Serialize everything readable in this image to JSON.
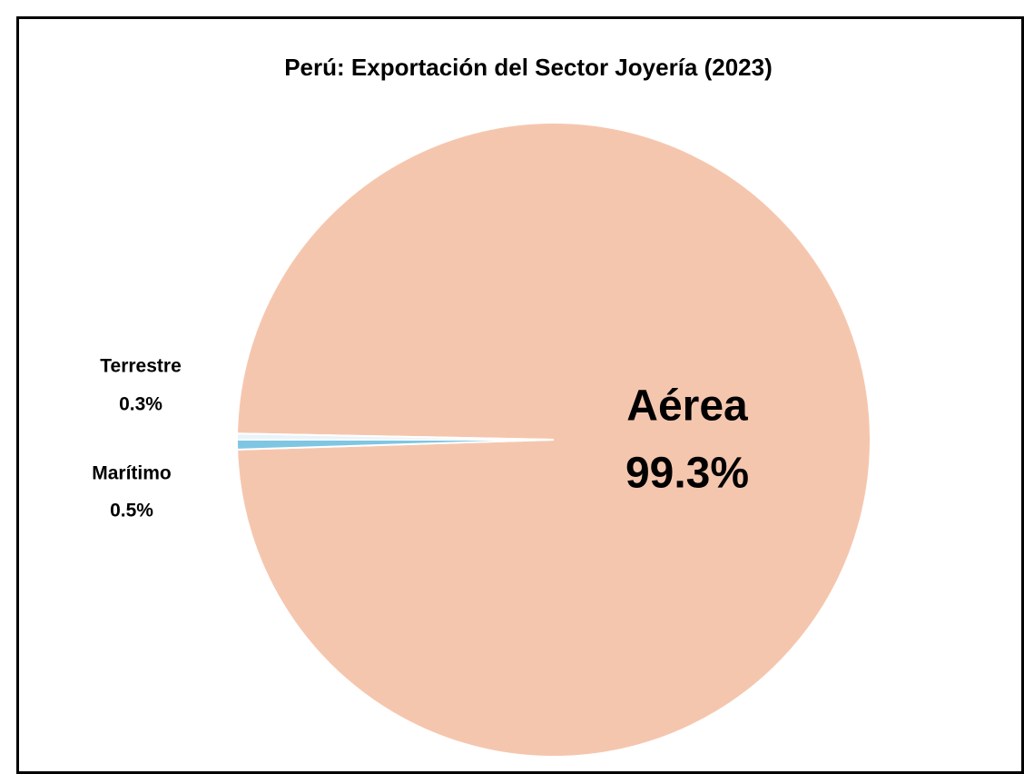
{
  "chart_data": {
    "type": "pie",
    "title": "Perú: Exportación del Sector Joyería (2023)",
    "categories": [
      "Aérea",
      "Marítimo",
      "Terrestre"
    ],
    "values": [
      99.3,
      0.5,
      0.3
    ],
    "value_labels": [
      "99.3%",
      "0.5%",
      "0.3%"
    ],
    "colors": [
      "#f5c6ae",
      "#7fc6e3",
      "#e8f3fa"
    ]
  }
}
